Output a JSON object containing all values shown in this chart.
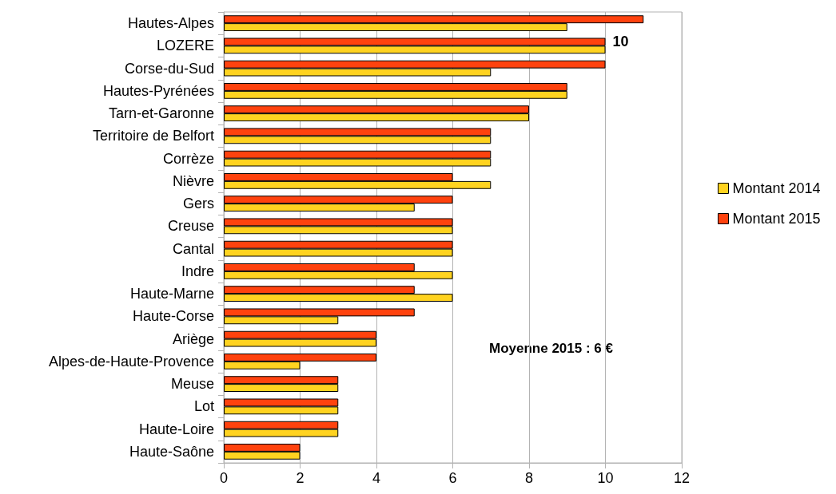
{
  "chart_data": {
    "type": "bar",
    "orientation": "horizontal",
    "categories": [
      "Hautes-Alpes",
      "LOZERE",
      "Corse-du-Sud",
      "Hautes-Pyrénées",
      "Tarn-et-Garonne",
      "Territoire de Belfort",
      "Corrèze",
      "Nièvre",
      "Gers",
      "Creuse",
      "Cantal",
      "Indre",
      "Haute-Marne",
      "Haute-Corse",
      "Ariège",
      "Alpes-de-Haute-Provence",
      "Meuse",
      "Lot",
      "Haute-Loire",
      "Haute-Saône"
    ],
    "series": [
      {
        "name": "Montant 2014",
        "color": "#ffd320",
        "values": [
          9,
          10,
          7,
          9,
          8,
          7,
          7,
          7,
          5,
          6,
          6,
          6,
          6,
          3,
          4,
          2,
          3,
          3,
          3,
          2
        ]
      },
      {
        "name": "Montant 2015",
        "color": "#ff420e",
        "values": [
          11,
          10,
          10,
          9,
          8,
          7,
          7,
          6,
          6,
          6,
          6,
          5,
          5,
          5,
          4,
          4,
          3,
          3,
          3,
          2
        ]
      }
    ],
    "xlim": [
      0,
      12
    ],
    "xticks": [
      0,
      2,
      4,
      6,
      8,
      10,
      12
    ],
    "grid": "x",
    "legend": "right",
    "annotations": [
      {
        "text": "10",
        "x": 10,
        "y": "LOZERE"
      },
      "Moyenne 2015 : 6 €"
    ]
  }
}
